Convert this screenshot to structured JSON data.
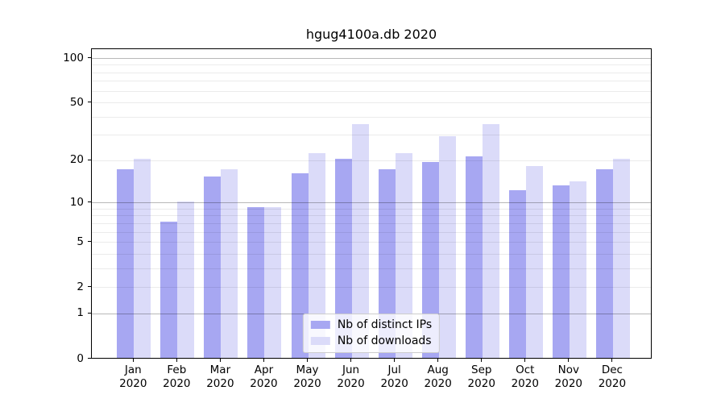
{
  "chart_data": {
    "type": "bar",
    "title": "hgug4100a.db 2020",
    "categories": [
      "Jan",
      "Feb",
      "Mar",
      "Apr",
      "May",
      "Jun",
      "Jul",
      "Aug",
      "Sep",
      "Oct",
      "Nov",
      "Dec"
    ],
    "year_label": "2020",
    "series": [
      {
        "name": "Nb of distinct IPs",
        "color": "#a7a7f2",
        "values": [
          17,
          7,
          15,
          9,
          16,
          20,
          17,
          19,
          21,
          12,
          13,
          17
        ]
      },
      {
        "name": "Nb of downloads",
        "color": "#dbdbf9",
        "values": [
          20,
          10,
          17,
          9,
          22,
          35,
          22,
          29,
          35,
          18,
          14,
          20
        ]
      }
    ],
    "xlabel": "",
    "ylabel": "",
    "y_scale": "log10(1+x)",
    "ylim": [
      0,
      117
    ],
    "y_ticks": [
      100,
      50,
      20,
      10,
      5,
      2,
      1,
      0
    ],
    "major_gridlines": [
      1,
      10,
      100
    ],
    "minor_gridlines": [
      2,
      3,
      4,
      5,
      6,
      7,
      8,
      9,
      20,
      30,
      40,
      50,
      60,
      70,
      80,
      90
    ],
    "grid": true,
    "legend_position": "lower center"
  },
  "colors": {
    "background": "#ffffff",
    "spine": "#000000",
    "text": "#000000",
    "legend_border": "#cccccc",
    "bar_distinct_ips": "#a7a7f2",
    "bar_downloads": "#dbdbf9"
  }
}
